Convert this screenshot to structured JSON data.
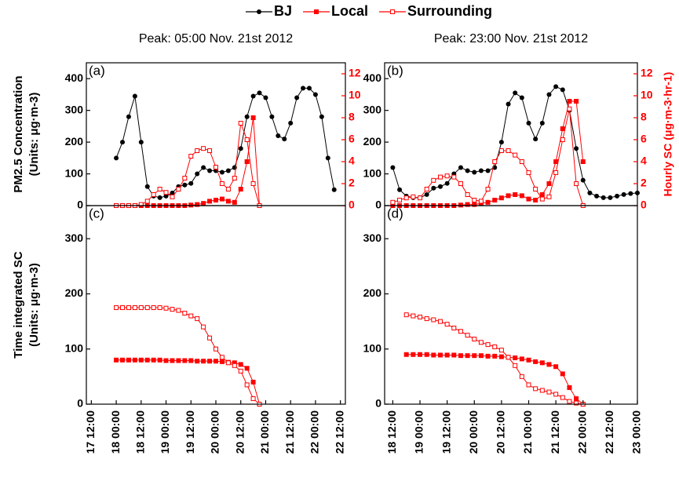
{
  "chart_data": [
    {
      "type": "line",
      "label": "(a)",
      "title": "Peak: 05:00 Nov. 21st 2012",
      "ylabel": [
        "PM2.5 Concentration",
        "(Units: μg·m-3)"
      ],
      "legend": "top",
      "xlim": [
        17.4,
        22.6
      ],
      "ylim": [
        0,
        450
      ],
      "yticks": [
        0,
        100,
        200,
        300,
        400
      ],
      "y2lim": [
        0,
        13
      ],
      "y2ticks": [
        0,
        2,
        4,
        6,
        8,
        10,
        12
      ],
      "x": [
        18,
        18.125,
        18.25,
        18.375,
        18.5,
        18.625,
        18.75,
        18.875,
        19,
        19.125,
        19.25,
        19.375,
        19.5,
        19.625,
        19.75,
        19.875,
        20,
        20.125,
        20.25,
        20.375,
        20.5,
        20.625,
        20.75,
        20.875,
        21,
        21.125,
        21.25,
        21.375,
        21.5,
        21.625,
        21.75,
        21.875,
        22,
        22.125,
        22.25,
        22.375
      ],
      "series": [
        {
          "name": "BJ",
          "color": "#000000",
          "marker": "circle",
          "values": [
            150,
            200,
            280,
            345,
            200,
            60,
            30,
            25,
            30,
            40,
            60,
            65,
            70,
            100,
            120,
            110,
            110,
            105,
            110,
            120,
            180,
            280,
            345,
            355,
            340,
            280,
            220,
            210,
            260,
            340,
            370,
            370,
            350,
            280,
            150,
            50
          ]
        },
        {
          "name": "Local",
          "color": "#ff0000",
          "marker": "square",
          "axis": "y2",
          "values": [
            0,
            0,
            0,
            0,
            0,
            0,
            0,
            0,
            0,
            0,
            0,
            0,
            0.05,
            0.1,
            0.2,
            0.4,
            0.5,
            0.6,
            0.4,
            0.3,
            1.5,
            4,
            8,
            0,
            null,
            null,
            null,
            null,
            null,
            null,
            null,
            null,
            null,
            null,
            null,
            null
          ]
        },
        {
          "name": "Surrounding",
          "color": "#ff0000",
          "marker": "open-square",
          "axis": "y2",
          "values": [
            0,
            0,
            0,
            0,
            0.1,
            0.4,
            1,
            1.5,
            1.2,
            0.8,
            1.5,
            2.5,
            4.5,
            5,
            5.2,
            5,
            3.5,
            2,
            1.5,
            2.5,
            7.5,
            6,
            2,
            0,
            null,
            null,
            null,
            null,
            null,
            null,
            null,
            null,
            null,
            null,
            null,
            null
          ]
        }
      ]
    },
    {
      "type": "line",
      "label": "(b)",
      "title": "Peak: 23:00 Nov. 21st 2012",
      "y2label": "Hourly SC (μg·m-3·hr-1)",
      "xlim": [
        18.35,
        23
      ],
      "ylim": [
        0,
        450
      ],
      "yticks": [
        0,
        100,
        200,
        300,
        400
      ],
      "y2lim": [
        0,
        13
      ],
      "y2ticks": [
        0,
        2,
        4,
        6,
        8,
        10,
        12
      ],
      "x": [
        18.5,
        18.625,
        18.75,
        18.875,
        19,
        19.125,
        19.25,
        19.375,
        19.5,
        19.625,
        19.75,
        19.875,
        20,
        20.125,
        20.25,
        20.375,
        20.5,
        20.625,
        20.75,
        20.875,
        21,
        21.125,
        21.25,
        21.375,
        21.5,
        21.625,
        21.75,
        21.875,
        22,
        22.125,
        22.25,
        22.375,
        22.5,
        22.625,
        22.75,
        22.875,
        23
      ],
      "series": [
        {
          "color": "#000000",
          "marker": "circle",
          "values": [
            120,
            50,
            30,
            25,
            25,
            35,
            55,
            60,
            70,
            100,
            120,
            110,
            105,
            110,
            110,
            120,
            200,
            320,
            355,
            340,
            260,
            210,
            260,
            350,
            375,
            365,
            300,
            180,
            80,
            40,
            30,
            25,
            25,
            30,
            35,
            38,
            40
          ]
        },
        {
          "color": "#ff0000",
          "marker": "square",
          "axis": "y2",
          "values": [
            0,
            0,
            0,
            0,
            0,
            0,
            0,
            0,
            0,
            0,
            0.05,
            0.1,
            0.1,
            0.2,
            0.3,
            0.5,
            0.7,
            0.9,
            1,
            0.9,
            0.6,
            0.5,
            1,
            2,
            4,
            7,
            9.5,
            9.5,
            4,
            null,
            null,
            null,
            null,
            null,
            null,
            null,
            null
          ]
        },
        {
          "color": "#ff0000",
          "marker": "open-square",
          "axis": "y2",
          "values": [
            0.3,
            0.5,
            0.7,
            0.8,
            0.7,
            1.5,
            2.3,
            2.6,
            2.7,
            2.6,
            2,
            1,
            0.5,
            0.4,
            1.5,
            4,
            5,
            5,
            4.6,
            4,
            3,
            1.5,
            0.6,
            0.8,
            3,
            6,
            8.8,
            2,
            0,
            null,
            null,
            null,
            null,
            null,
            null,
            null,
            null
          ]
        }
      ]
    },
    {
      "type": "line",
      "label": "(c)",
      "ylabel": [
        "Time integrated SC",
        "(Units: μg·m-3)"
      ],
      "xlim": [
        17.4,
        22.6
      ],
      "ylim": [
        0,
        360
      ],
      "yticks": [
        0,
        100,
        200,
        300
      ],
      "xticks": [
        {
          "value": 17.5,
          "label": "17 12:00"
        },
        {
          "value": 18,
          "label": "18 00:00"
        },
        {
          "value": 18.5,
          "label": "18 12:00"
        },
        {
          "value": 19,
          "label": "19 00:00"
        },
        {
          "value": 19.5,
          "label": "19 12:00"
        },
        {
          "value": 20,
          "label": "20 00:00"
        },
        {
          "value": 20.5,
          "label": "20 12:00"
        },
        {
          "value": 21,
          "label": "21 00:00"
        },
        {
          "value": 21.5,
          "label": "21 12:00"
        },
        {
          "value": 22,
          "label": "22 00:00"
        },
        {
          "value": 22.5,
          "label": "22 12:00"
        }
      ],
      "x": [
        18,
        18.125,
        18.25,
        18.375,
        18.5,
        18.625,
        18.75,
        18.875,
        19,
        19.125,
        19.25,
        19.375,
        19.5,
        19.625,
        19.75,
        19.875,
        20,
        20.125,
        20.25,
        20.375,
        20.5,
        20.625,
        20.75,
        20.875
      ],
      "series": [
        {
          "color": "#ff0000",
          "marker": "square",
          "values": [
            80,
            80,
            80,
            80,
            80,
            80,
            80,
            80,
            79,
            79,
            79,
            79,
            79,
            78,
            78,
            78,
            78,
            77,
            76,
            75,
            72,
            65,
            40,
            0
          ]
        },
        {
          "color": "#ff0000",
          "marker": "open-square",
          "values": [
            175,
            175,
            175,
            175,
            175,
            175,
            175,
            175,
            174,
            172,
            170,
            165,
            160,
            155,
            140,
            120,
            100,
            85,
            75,
            70,
            60,
            35,
            10,
            0
          ]
        }
      ]
    },
    {
      "type": "line",
      "label": "(d)",
      "xlim": [
        18.35,
        23
      ],
      "ylim": [
        0,
        360
      ],
      "yticks": [
        0,
        100,
        200,
        300
      ],
      "xticks": [
        {
          "value": 18.5,
          "label": "18 12:00"
        },
        {
          "value": 19,
          "label": "19 00:00"
        },
        {
          "value": 19.5,
          "label": "19 12:00"
        },
        {
          "value": 20,
          "label": "20 00:00"
        },
        {
          "value": 20.5,
          "label": "20 12:00"
        },
        {
          "value": 21,
          "label": "21 00:00"
        },
        {
          "value": 21.5,
          "label": "21 12:00"
        },
        {
          "value": 22,
          "label": "22 00:00"
        },
        {
          "value": 22.5,
          "label": "22 12:00"
        },
        {
          "value": 23,
          "label": "23 00:00"
        }
      ],
      "x": [
        18.75,
        18.875,
        19,
        19.125,
        19.25,
        19.375,
        19.5,
        19.625,
        19.75,
        19.875,
        20,
        20.125,
        20.25,
        20.375,
        20.5,
        20.625,
        20.75,
        20.875,
        21,
        21.125,
        21.25,
        21.375,
        21.5,
        21.625,
        21.75,
        21.875,
        22
      ],
      "series": [
        {
          "color": "#ff0000",
          "marker": "square",
          "values": [
            90,
            90,
            90,
            90,
            89,
            89,
            89,
            89,
            88,
            88,
            88,
            88,
            87,
            87,
            86,
            85,
            84,
            82,
            80,
            77,
            75,
            72,
            68,
            55,
            30,
            10,
            0
          ]
        },
        {
          "color": "#ff0000",
          "marker": "open-square",
          "values": [
            162,
            160,
            158,
            155,
            153,
            150,
            145,
            138,
            132,
            125,
            118,
            112,
            108,
            104,
            98,
            85,
            70,
            50,
            35,
            28,
            25,
            22,
            18,
            12,
            5,
            2,
            0
          ]
        }
      ]
    }
  ]
}
